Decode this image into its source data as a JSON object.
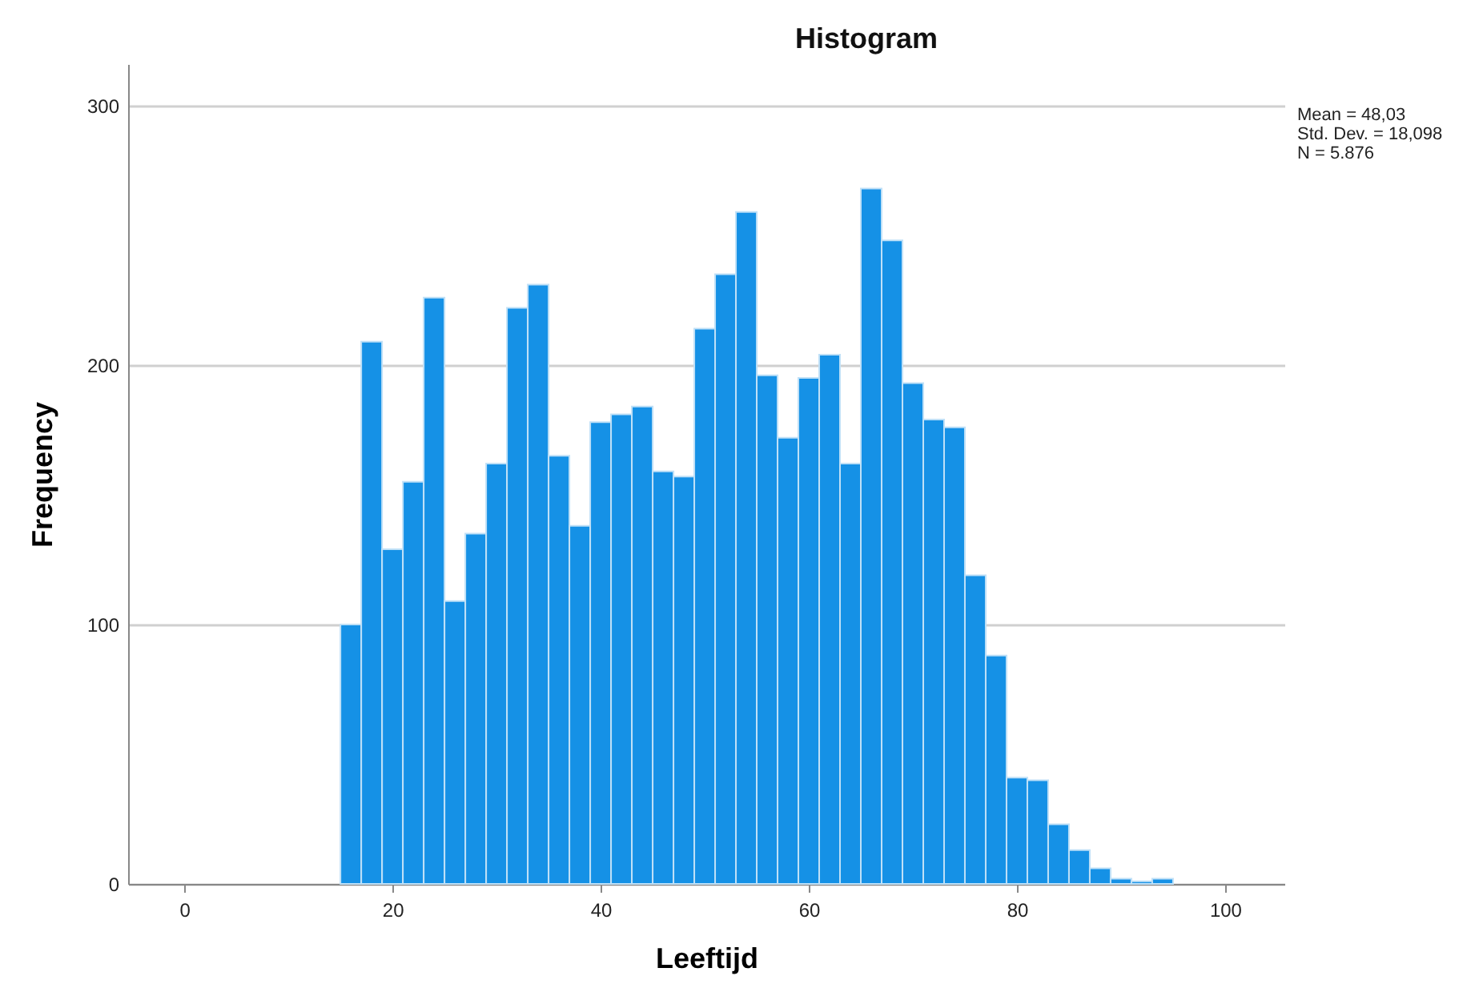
{
  "chart_data": {
    "type": "histogram",
    "title": "Histogram",
    "xlabel": "Leeftijd",
    "ylabel": "Frequency",
    "bins": [
      15,
      17,
      19,
      21,
      23,
      25,
      27,
      29,
      31,
      33,
      35,
      37,
      39,
      41,
      43,
      45,
      47,
      49,
      51,
      53,
      55,
      57,
      59,
      61,
      63,
      65,
      67,
      69,
      71,
      73,
      75,
      77,
      79,
      81,
      83,
      85,
      87,
      89,
      91,
      93,
      95
    ],
    "values": [
      100,
      209,
      129,
      155,
      226,
      109,
      135,
      162,
      222,
      231,
      165,
      138,
      178,
      181,
      184,
      159,
      157,
      214,
      235,
      259,
      196,
      172,
      195,
      204,
      162,
      268,
      248,
      193,
      179,
      176,
      119,
      88,
      41,
      40,
      23,
      13,
      6,
      2,
      1,
      2
    ],
    "color": "#1591e6",
    "xlim": [
      -5.4,
      105.7
    ],
    "xticks": [
      0,
      20,
      40,
      60,
      80,
      100
    ],
    "ylim": [
      0,
      316
    ],
    "yticks": [
      0,
      100,
      200,
      300
    ],
    "grid": "y",
    "annotations": [
      "Mean = 48,03",
      "Std. Dev. = 18,098",
      "N = 5.876"
    ]
  }
}
